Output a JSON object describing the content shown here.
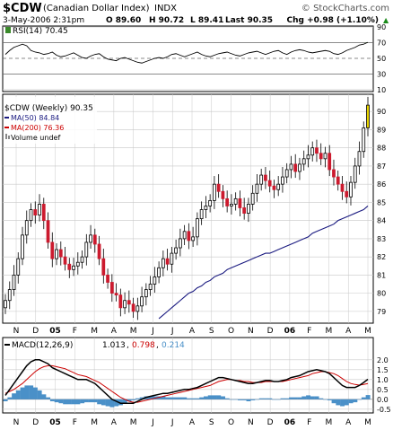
{
  "header": {
    "symbol": "$CDW",
    "name": "(Canadian Dollar Index)",
    "exchange": "INDX",
    "watermark": "© StockCharts.com",
    "date_time": "3-May-2006 2:31pm",
    "open": "O 89.60",
    "high": "H 90.72",
    "low": "L 89.41",
    "last": "Last 90.35",
    "change": "Chg +0.98 (+1.10%)",
    "change_arrow": "▲"
  },
  "colors": {
    "up": "#000000",
    "down": "#cc1a2e",
    "ma50": "#1a1a80",
    "ma200": "#cc0000",
    "rsi_fill": "#3a8a2a",
    "macd_line": "#000000",
    "signal_line": "#cc0000",
    "histogram": "#4a90c8",
    "last_bar": "#e8d400",
    "grid": "#c8c8c8"
  },
  "chart_data": [
    {
      "type": "line",
      "panel": "rsi",
      "legend": "RSI(14) 70.45",
      "ylim": [
        10,
        90
      ],
      "yticks": [
        90,
        70,
        50,
        30,
        10
      ],
      "reference_lines": [
        70,
        50,
        30
      ],
      "values": [
        55,
        60,
        64,
        66,
        68,
        66,
        60,
        58,
        57,
        55,
        56,
        58,
        54,
        52,
        53,
        55,
        57,
        54,
        51,
        50,
        53,
        55,
        56,
        52,
        49,
        48,
        47,
        50,
        51,
        49,
        47,
        45,
        44,
        46,
        48,
        50,
        51,
        50,
        52,
        55,
        56,
        54,
        52,
        54,
        56,
        58,
        55,
        53,
        52,
        54,
        56,
        57,
        58,
        56,
        54,
        53,
        55,
        57,
        58,
        59,
        57,
        55,
        57,
        59,
        60,
        57,
        55,
        58,
        60,
        61,
        60,
        58,
        57,
        58,
        59,
        60,
        59,
        56,
        55,
        57,
        60,
        62,
        64,
        67,
        68,
        70.45
      ]
    },
    {
      "type": "candlestick",
      "panel": "price",
      "legend": "$CDW (Weekly) 90.35",
      "ylim": [
        78.5,
        90.8
      ],
      "yticks": [
        79,
        80,
        81,
        82,
        83,
        84,
        85,
        86,
        87,
        88,
        89,
        90
      ],
      "xticks": [
        "N",
        "D",
        "05",
        "F",
        "M",
        "A",
        "M",
        "J",
        "J",
        "A",
        "S",
        "O",
        "N",
        "D",
        "06",
        "F",
        "M",
        "A",
        "M"
      ],
      "close": [
        79.6,
        80.2,
        81.0,
        81.9,
        83.2,
        84.0,
        84.6,
        84.3,
        84.9,
        84.0,
        82.8,
        81.9,
        82.4,
        82.0,
        81.6,
        81.3,
        81.5,
        81.7,
        82.0,
        82.8,
        83.2,
        82.7,
        81.9,
        81.0,
        80.6,
        80.0,
        79.9,
        79.2,
        79.6,
        79.4,
        79.0,
        79.3,
        79.8,
        80.2,
        80.5,
        80.9,
        81.4,
        81.9,
        81.6,
        82.2,
        82.5,
        83.0,
        83.4,
        82.9,
        83.1,
        84.1,
        84.6,
        84.8,
        85.1,
        86.0,
        85.6,
        85.2,
        84.8,
        84.9,
        85.2,
        84.7,
        84.4,
        84.9,
        85.5,
        86.0,
        86.5,
        86.2,
        85.9,
        85.7,
        86.0,
        86.4,
        86.8,
        87.1,
        86.7,
        87.1,
        87.4,
        87.6,
        88.0,
        87.7,
        87.4,
        87.7,
        86.8,
        86.4,
        86.0,
        85.6,
        85.3,
        86.1,
        87.0,
        87.8,
        89.1,
        90.35
      ]
    },
    {
      "type": "line",
      "panel": "price",
      "name": "MA(50) 84.84",
      "values": [
        78.6,
        78.8,
        79.0,
        79.2,
        79.4,
        79.6,
        79.8,
        80.0,
        80.1,
        80.3,
        80.4,
        80.6,
        80.7,
        80.9,
        81.0,
        81.1,
        81.3,
        81.4,
        81.5,
        81.6,
        81.7,
        81.8,
        81.9,
        82.0,
        82.1,
        82.2,
        82.2,
        82.3,
        82.4,
        82.5,
        82.6,
        82.7,
        82.8,
        82.9,
        83.0,
        83.1,
        83.3,
        83.4,
        83.5,
        83.6,
        83.7,
        83.8,
        84.0,
        84.1,
        84.2,
        84.3,
        84.4,
        84.5,
        84.6,
        84.8
      ],
      "start_index": 36
    },
    {
      "type": "line",
      "panel": "price",
      "name": "MA(200) 76.36"
    },
    {
      "type": "line",
      "panel": "price",
      "name": "Volume undef"
    },
    {
      "type": "line+bar",
      "panel": "macd",
      "legend_label": "MACD(12,26,9)",
      "legend_macd": "1.013",
      "legend_signal": "0.798",
      "legend_hist": "0.214",
      "ylim": [
        -0.6,
        2.4
      ],
      "yticks": [
        2.0,
        1.5,
        1.0,
        0.5,
        0.0,
        -0.5
      ],
      "macd": [
        0.2,
        0.5,
        0.8,
        1.1,
        1.4,
        1.7,
        1.9,
        2.0,
        2.0,
        1.9,
        1.8,
        1.6,
        1.5,
        1.4,
        1.3,
        1.2,
        1.1,
        1.0,
        1.0,
        1.0,
        0.9,
        0.8,
        0.6,
        0.4,
        0.2,
        0.0,
        -0.1,
        -0.2,
        -0.2,
        -0.2,
        -0.2,
        -0.1,
        0.0,
        0.1,
        0.15,
        0.2,
        0.25,
        0.3,
        0.3,
        0.35,
        0.4,
        0.45,
        0.5,
        0.5,
        0.55,
        0.6,
        0.7,
        0.8,
        0.9,
        1.0,
        1.1,
        1.1,
        1.05,
        1.0,
        0.95,
        0.9,
        0.85,
        0.8,
        0.8,
        0.85,
        0.9,
        0.95,
        0.95,
        0.9,
        0.9,
        0.95,
        1.0,
        1.1,
        1.15,
        1.2,
        1.3,
        1.4,
        1.45,
        1.5,
        1.45,
        1.4,
        1.3,
        1.1,
        0.9,
        0.7,
        0.6,
        0.6,
        0.6,
        0.7,
        0.85,
        1.013
      ],
      "signal": [
        0.3,
        0.4,
        0.5,
        0.65,
        0.8,
        1.0,
        1.2,
        1.4,
        1.55,
        1.65,
        1.7,
        1.7,
        1.65,
        1.6,
        1.55,
        1.45,
        1.35,
        1.25,
        1.2,
        1.15,
        1.05,
        0.95,
        0.85,
        0.7,
        0.55,
        0.4,
        0.25,
        0.1,
        0.0,
        -0.1,
        -0.15,
        -0.15,
        -0.1,
        -0.05,
        0.0,
        0.05,
        0.1,
        0.15,
        0.2,
        0.25,
        0.3,
        0.35,
        0.4,
        0.45,
        0.5,
        0.55,
        0.6,
        0.65,
        0.7,
        0.8,
        0.9,
        0.95,
        1.0,
        1.0,
        0.95,
        0.95,
        0.9,
        0.9,
        0.85,
        0.85,
        0.85,
        0.9,
        0.9,
        0.9,
        0.9,
        0.9,
        0.95,
        1.0,
        1.05,
        1.1,
        1.15,
        1.2,
        1.3,
        1.35,
        1.4,
        1.4,
        1.35,
        1.3,
        1.2,
        1.05,
        0.9,
        0.8,
        0.75,
        0.72,
        0.75,
        0.798
      ],
      "histogram": [
        -0.1,
        0.1,
        0.3,
        0.45,
        0.6,
        0.7,
        0.7,
        0.6,
        0.45,
        0.25,
        0.1,
        -0.1,
        -0.15,
        -0.2,
        -0.25,
        -0.25,
        -0.25,
        -0.25,
        -0.2,
        -0.15,
        -0.15,
        -0.15,
        -0.25,
        -0.3,
        -0.35,
        -0.4,
        -0.35,
        -0.3,
        -0.2,
        -0.1,
        -0.05,
        0.05,
        0.1,
        0.15,
        0.15,
        0.15,
        0.15,
        0.15,
        0.1,
        0.1,
        0.1,
        0.1,
        0.1,
        0.05,
        0.05,
        0.05,
        0.1,
        0.15,
        0.2,
        0.2,
        0.2,
        0.15,
        0.05,
        0.0,
        0.0,
        -0.05,
        -0.05,
        -0.1,
        -0.05,
        0.0,
        0.05,
        0.05,
        0.05,
        0.0,
        0.0,
        0.05,
        0.05,
        0.1,
        0.1,
        0.1,
        0.15,
        0.2,
        0.15,
        0.15,
        0.05,
        0.0,
        -0.05,
        -0.2,
        -0.3,
        -0.35,
        -0.3,
        -0.2,
        -0.15,
        -0.02,
        0.1,
        0.214
      ]
    }
  ]
}
